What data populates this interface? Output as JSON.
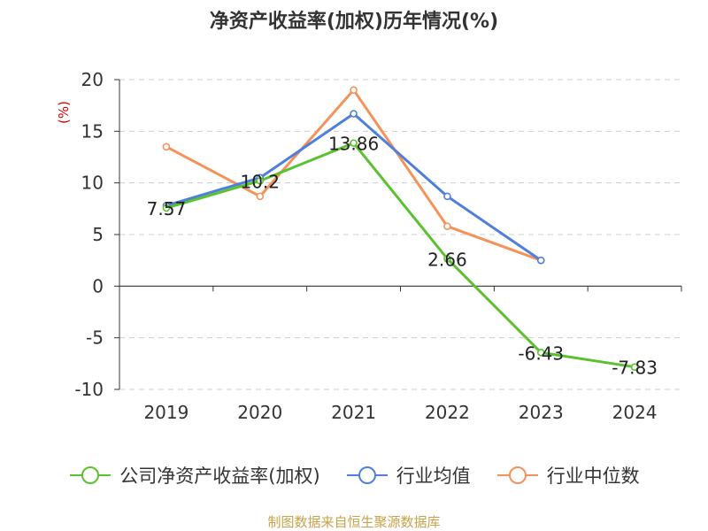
{
  "chart_data": {
    "type": "line",
    "title": "净资产收益率(加权)历年情况(%)",
    "ylabel": "(%)",
    "categories": [
      "2019",
      "2020",
      "2021",
      "2022",
      "2023",
      "2024"
    ],
    "ylim": [
      -10,
      20
    ],
    "yticks": [
      "20",
      "15",
      "10",
      "5",
      "0",
      "-5",
      "-10"
    ],
    "grid": true,
    "legend_position": "bottom",
    "series": [
      {
        "name": "公司净资产收益率(加权)",
        "color": "#5ac22e",
        "values": [
          7.57,
          10.2,
          13.86,
          2.66,
          -6.43,
          -7.83
        ],
        "labels": [
          "7.57",
          "10.2",
          "13.86",
          "2.66",
          "-6.43",
          "-7.83"
        ]
      },
      {
        "name": "行业均值",
        "color": "#4e7fdb",
        "values": [
          7.8,
          10.5,
          16.7,
          8.7,
          2.5,
          null
        ]
      },
      {
        "name": "行业中位数",
        "color": "#f4925a",
        "values": [
          13.5,
          8.7,
          19.0,
          5.8,
          2.5,
          null
        ]
      }
    ]
  },
  "source_text": "制图数据来自恒生聚源数据库"
}
